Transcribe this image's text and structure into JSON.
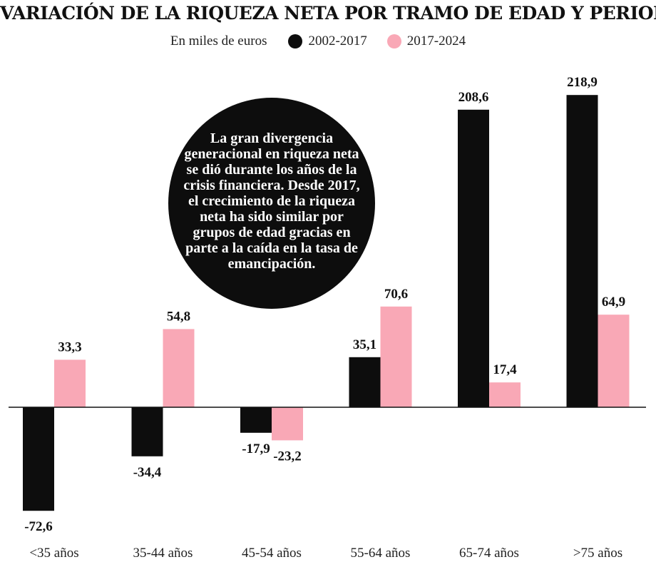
{
  "title": "VARIACIÓN DE LA RIQUEZA NETA POR TRAMO DE EDAD Y PERIODO",
  "legend": {
    "unit": "En  miles de euros",
    "items": [
      {
        "label": "2002-2017",
        "color": "#0d0d0d"
      },
      {
        "label": "2017-2024",
        "color": "#f9a8b6"
      }
    ]
  },
  "callout": "La gran divergencia generacional en riqueza neta se dió durante los años de la crisis financiera. Desde 2017, el crecimiento de la riqueza neta ha sido similar por grupos de edad gracias en parte a la caída en la tasa de emancipación.",
  "chart_data": {
    "type": "bar",
    "title": "VARIACIÓN DE LA RIQUEZA NETA POR TRAMO DE EDAD Y PERIODO",
    "xlabel": "",
    "ylabel": "",
    "categories": [
      "<35 años",
      "35-44 años",
      "45-54 años",
      "55-64 años",
      "65-74 años",
      ">75 años"
    ],
    "series": [
      {
        "name": "2002-2017",
        "color": "#0d0d0d",
        "values": [
          -72.6,
          -34.4,
          -17.9,
          35.1,
          208.6,
          218.9
        ],
        "labels": [
          "-72,6",
          "-34,4",
          "-17,9",
          "35,1",
          "208,6",
          "218,9"
        ]
      },
      {
        "name": "2017-2024",
        "color": "#f9a8b6",
        "values": [
          33.3,
          54.8,
          -23.2,
          70.6,
          17.4,
          64.9
        ],
        "labels": [
          "33,3",
          "54,8",
          "-23,2",
          "70,6",
          "17,4",
          "64,9"
        ]
      }
    ],
    "ylim": [
      -80,
      230
    ],
    "grid": false,
    "legend_position": "top"
  }
}
